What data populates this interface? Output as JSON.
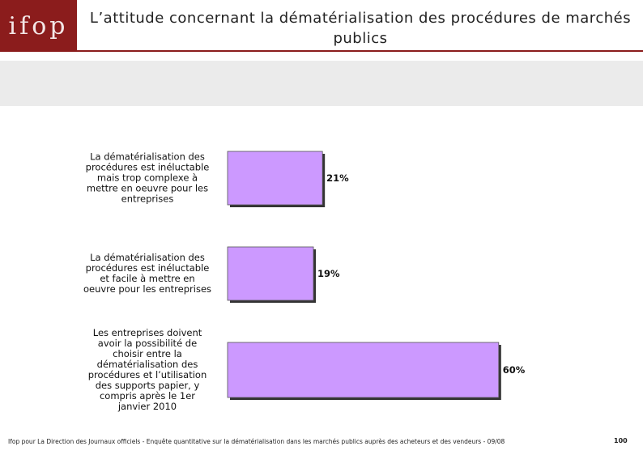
{
  "logo": "ifop",
  "chart_data": {
    "type": "bar",
    "orientation": "horizontal",
    "title": "L’attitude concernant la dématérialisation des procédures de marchés publics",
    "categories": [
      "La dématérialisation des\nprocédures est inéluctable\nmais trop complexe à\nmettre en oeuvre pour les\nentreprises",
      "La dématérialisation des\nprocédures est inéluctable\net facile à mettre en\noeuvre pour les entreprises",
      "Les entreprises doivent\navoir la possibilité de\nchoisir entre la\ndématérialisation des\nprocédures et l’utilisation\ndes supports papier, y\ncompris après le 1er\njanvier 2010"
    ],
    "values": [
      21,
      19,
      60
    ],
    "value_labels": [
      "21%",
      "19%",
      "60%"
    ],
    "color": "#cc99ff"
  },
  "footer": {
    "source": "Ifop pour La Direction des Journaux officiels - Enquête quantitative sur la dématérialisation dans les marchés publics auprès des acheteurs et des vendeurs - 09/08",
    "page": "100"
  }
}
